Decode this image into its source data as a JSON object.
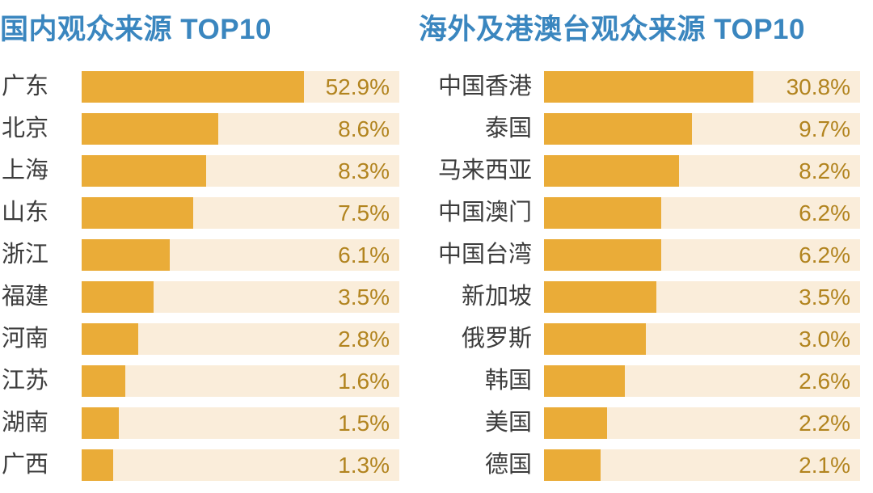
{
  "colors": {
    "background": "#FFFFFF",
    "title_text": "#3A86BF",
    "bar_fill": "#EAAC38",
    "bar_track": "#FAEDDA",
    "value_text": "#B2841F",
    "category_text": "#3C3C3C"
  },
  "chart_data": [
    {
      "type": "bar",
      "orientation": "horizontal",
      "title": "国内观众来源 TOP10",
      "legend": "none",
      "grid": "off",
      "value_axis": "hidden (data labels shown on bars)",
      "scale_note": "bar lengths as drawn are not linear in value; bar_fraction = fill width / track width measured from the image",
      "items": [
        {
          "label": "广东",
          "value": 52.9,
          "value_label": "52.9%",
          "bar_fraction": 0.701
        },
        {
          "label": "北京",
          "value": 8.6,
          "value_label": "8.6%",
          "bar_fraction": 0.43
        },
        {
          "label": "上海",
          "value": 8.3,
          "value_label": "8.3%",
          "bar_fraction": 0.392
        },
        {
          "label": "山东",
          "value": 7.5,
          "value_label": "7.5%",
          "bar_fraction": 0.352
        },
        {
          "label": "浙江",
          "value": 6.1,
          "value_label": "6.1%",
          "bar_fraction": 0.278
        },
        {
          "label": "福建",
          "value": 3.5,
          "value_label": "3.5%",
          "bar_fraction": 0.226
        },
        {
          "label": "河南",
          "value": 2.8,
          "value_label": "2.8%",
          "bar_fraction": 0.179
        },
        {
          "label": "江苏",
          "value": 1.6,
          "value_label": "1.6%",
          "bar_fraction": 0.138
        },
        {
          "label": "湖南",
          "value": 1.5,
          "value_label": "1.5%",
          "bar_fraction": 0.118
        },
        {
          "label": "广西",
          "value": 1.3,
          "value_label": "1.3%",
          "bar_fraction": 0.099
        }
      ]
    },
    {
      "type": "bar",
      "orientation": "horizontal",
      "title": "海外及港澳台观众来源 TOP10",
      "legend": "none",
      "grid": "off",
      "value_axis": "hidden (data labels shown on bars)",
      "scale_note": "bar lengths as drawn are not linear in value; bar_fraction = fill width / track width measured from the image",
      "items": [
        {
          "label": "中国香港",
          "value": 30.8,
          "value_label": "30.8%",
          "bar_fraction": 0.662
        },
        {
          "label": "泰国",
          "value": 9.7,
          "value_label": "9.7%",
          "bar_fraction": 0.469
        },
        {
          "label": "马来西亚",
          "value": 8.2,
          "value_label": "8.2%",
          "bar_fraction": 0.427
        },
        {
          "label": "中国澳门",
          "value": 6.2,
          "value_label": "6.2%",
          "bar_fraction": 0.371
        },
        {
          "label": "中国台湾",
          "value": 6.2,
          "value_label": "6.2%",
          "bar_fraction": 0.371
        },
        {
          "label": "新加坡",
          "value": 3.5,
          "value_label": "3.5%",
          "bar_fraction": 0.356
        },
        {
          "label": "俄罗斯",
          "value": 3.0,
          "value_label": "3.0%",
          "bar_fraction": 0.322
        },
        {
          "label": "韩国",
          "value": 2.6,
          "value_label": "2.6%",
          "bar_fraction": 0.256
        },
        {
          "label": "美国",
          "value": 2.2,
          "value_label": "2.2%",
          "bar_fraction": 0.199
        },
        {
          "label": "德国",
          "value": 2.1,
          "value_label": "2.1%",
          "bar_fraction": 0.18
        }
      ]
    }
  ]
}
